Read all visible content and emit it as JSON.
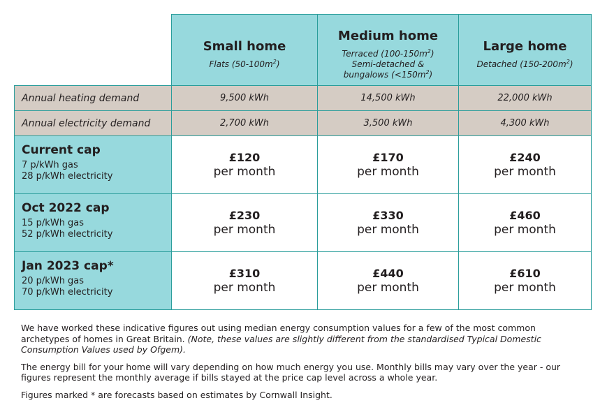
{
  "columns": [
    {
      "name": "Small home",
      "desc_lines": [
        "Flats (50-100m",
        "2",
        ")"
      ]
    },
    {
      "name": "Medium home"
    },
    {
      "name": "Large home"
    }
  ],
  "medium_desc": {
    "line1_pre": "Terraced (100-150m",
    "line1_sup": "2",
    "line1_post": ")",
    "line2": "Semi-detached &",
    "line3_pre": "bungalows (<150m",
    "line3_sup": "2",
    "line3_post": ")"
  },
  "large_desc": {
    "pre": "Detached (150-200m",
    "sup": "2",
    "post": ")"
  },
  "demand_rows": [
    {
      "label": "Annual heating demand",
      "values": [
        "9,500 kWh",
        "14,500 kWh",
        "22,000 kWh"
      ]
    },
    {
      "label": "Annual electricity demand",
      "values": [
        "2,700 kWh",
        "3,500 kWh",
        "4,300 kWh"
      ]
    }
  ],
  "cap_rows": [
    {
      "name": "Current cap",
      "gas": "7 p/kWh gas",
      "electricity": "28 p/kWh electricity",
      "prices": [
        "£120",
        "£170",
        "£240"
      ]
    },
    {
      "name": "Oct 2022 cap",
      "gas": "15 p/kWh gas",
      "electricity": "52 p/kWh electricity",
      "prices": [
        "£230",
        "£330",
        "£460"
      ]
    },
    {
      "name": "Jan 2023 cap*",
      "gas": "20 p/kWh gas",
      "electricity": "70 p/kWh electricity",
      "prices": [
        "£310",
        "£440",
        "£610"
      ]
    }
  ],
  "per_month": "per month",
  "notes": {
    "p1_plain": "We have worked these indicative figures out using median energy consumption values for a few of the most common archetypes of homes in Great Britain. ",
    "p1_italic": "(Note, these values are slightly different from the standardised Typical Domestic Consumption Values used by Ofgem).",
    "p2": "The energy bill for your home will vary depending on how much energy you use. Monthly bills may vary over the year - our figures represent the monthly average if bills stayed at the price cap level across a whole year.",
    "p3": "Figures marked * are forecasts based on estimates by Cornwall Insight."
  }
}
